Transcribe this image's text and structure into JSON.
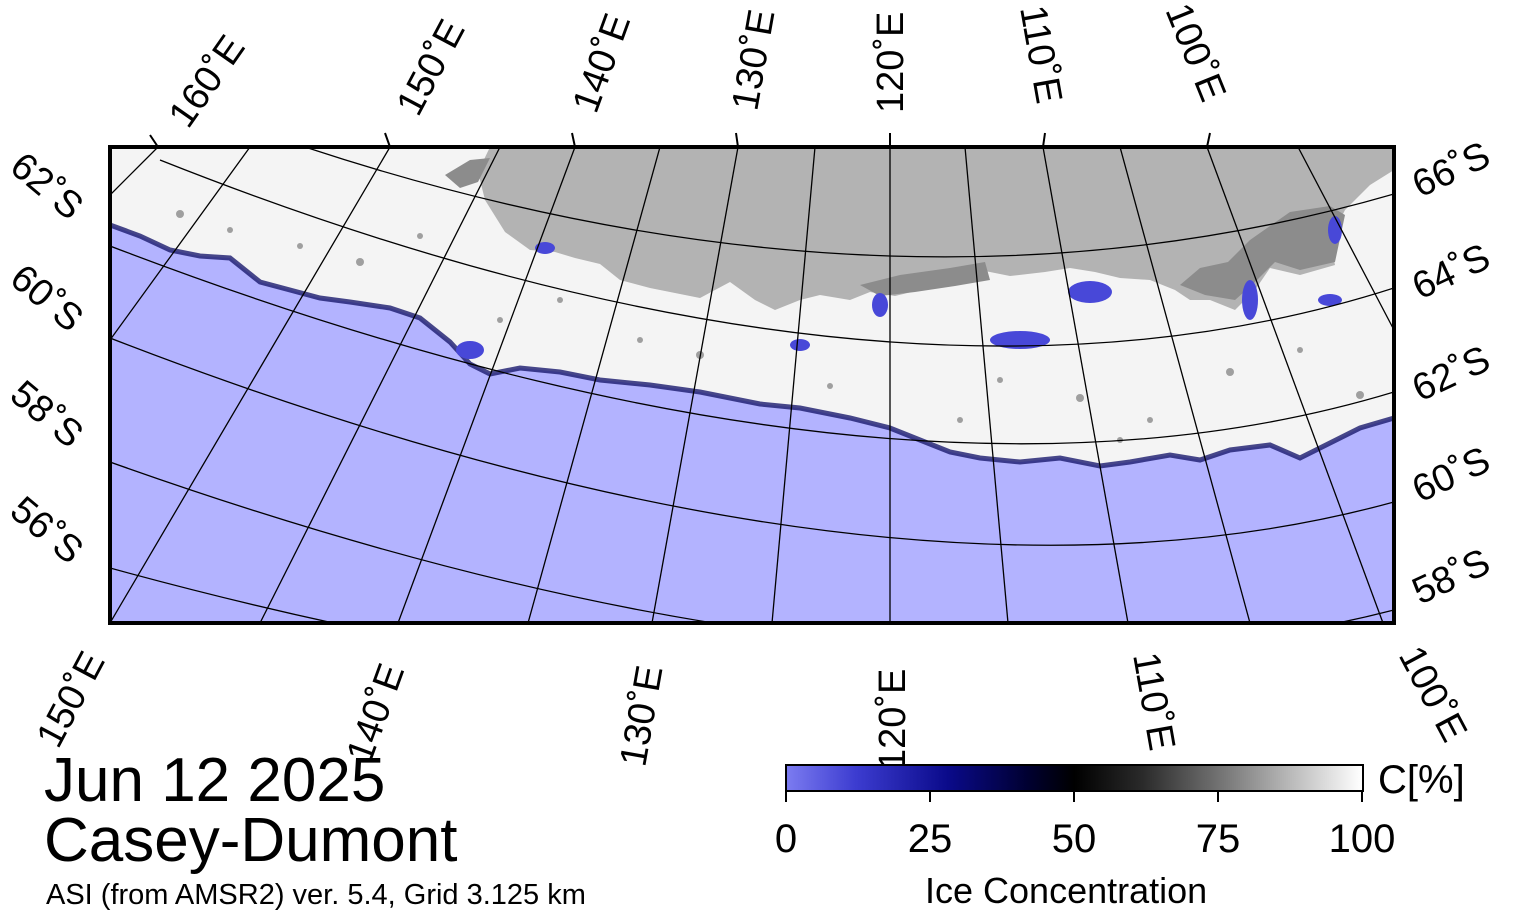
{
  "map": {
    "date": "Jun 12 2025",
    "region": "Casey-Dumont",
    "product": "ASI (from AMSR2) ver. 5.4,  Grid 3.125 km",
    "colors": {
      "ocean_open_water": "#b3b3ff",
      "land": "#b3b3b3",
      "ice_shelf": "#8c8c8c",
      "ice_high": "#ffffff",
      "graticule": "#000000"
    },
    "top_longitude_labels": [
      "160˚E",
      "150˚E",
      "140˚E",
      "130˚E",
      "120˚E",
      "110˚E",
      "100˚E"
    ],
    "bottom_longitude_labels": [
      "150˚E",
      "140˚E",
      "130˚E",
      "120˚E",
      "110˚E",
      "100˚E"
    ],
    "left_latitude_labels": [
      "62˚S",
      "60˚S",
      "58˚S",
      "56˚S"
    ],
    "right_latitude_labels": [
      "66˚S",
      "64˚S",
      "62˚S",
      "60˚S",
      "58˚S"
    ]
  },
  "colorbar": {
    "title": "Ice Concentration",
    "unit": "C[%]",
    "ticks": [
      "0",
      "25",
      "50",
      "75",
      "100"
    ]
  }
}
